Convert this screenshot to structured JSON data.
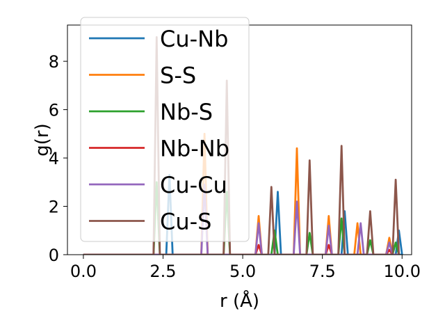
{
  "chart_data": {
    "type": "line",
    "title": "",
    "xlabel": "r (Å)",
    "ylabel": "g(r)",
    "xlim": [
      -0.5,
      10.3
    ],
    "ylim": [
      0,
      9.5
    ],
    "x_ticks": [
      0.0,
      2.5,
      5.0,
      7.5,
      10.0
    ],
    "x_tick_labels": [
      "0.0",
      "2.5",
      "5.0",
      "7.5",
      "10.0"
    ],
    "y_ticks": [
      0,
      2,
      4,
      6,
      8
    ],
    "y_tick_labels": [
      "0",
      "2",
      "4",
      "6",
      "8"
    ],
    "grid": false,
    "legend_position": "top-left",
    "peak_half_width": 0.1,
    "x_start": 0.0,
    "x_end": 9.9,
    "series": [
      {
        "name": "Cu-Nb",
        "color": "#1f77b4",
        "peaks": [
          [
            2.7,
            3.3
          ],
          [
            6.1,
            2.6
          ],
          [
            8.2,
            1.8
          ],
          [
            9.9,
            1.0
          ]
        ]
      },
      {
        "name": "S-S",
        "color": "#ff7f0e",
        "peaks": [
          [
            3.8,
            5.0
          ],
          [
            5.5,
            1.6
          ],
          [
            6.7,
            4.4
          ],
          [
            7.7,
            1.6
          ],
          [
            8.6,
            1.3
          ],
          [
            9.6,
            0.7
          ]
        ]
      },
      {
        "name": "Nb-S",
        "color": "#2ca02c",
        "peaks": [
          [
            2.3,
            3.0
          ],
          [
            4.5,
            2.6
          ],
          [
            6.0,
            1.0
          ],
          [
            7.1,
            0.9
          ],
          [
            8.1,
            1.5
          ],
          [
            9.0,
            0.6
          ],
          [
            9.8,
            0.5
          ]
        ]
      },
      {
        "name": "Nb-Nb",
        "color": "#d62728",
        "peaks": [
          [
            5.5,
            0.4
          ],
          [
            7.7,
            0.4
          ],
          [
            9.6,
            0.2
          ]
        ]
      },
      {
        "name": "Cu-Cu",
        "color": "#9467bd",
        "peaks": [
          [
            3.8,
            2.9
          ],
          [
            5.5,
            1.3
          ],
          [
            6.7,
            2.2
          ],
          [
            7.7,
            1.2
          ],
          [
            8.7,
            1.3
          ],
          [
            9.6,
            0.5
          ]
        ]
      },
      {
        "name": "Cu-S",
        "color": "#8c564b",
        "peaks": [
          [
            2.3,
            9.0
          ],
          [
            4.5,
            7.2
          ],
          [
            5.9,
            2.8
          ],
          [
            7.1,
            3.9
          ],
          [
            8.1,
            4.5
          ],
          [
            9.0,
            1.8
          ],
          [
            9.8,
            3.1
          ]
        ]
      }
    ]
  }
}
